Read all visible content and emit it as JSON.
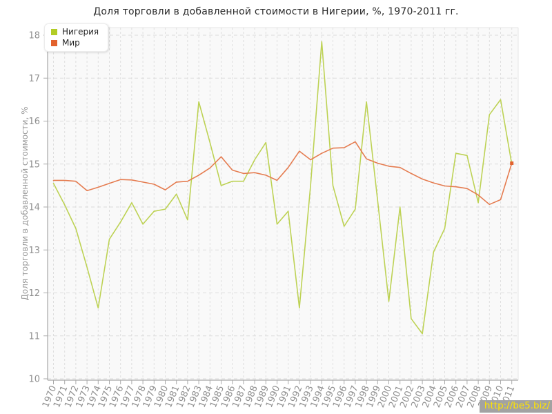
{
  "title": "Доля торговли в добавленной стоимости в Нигерии, %, 1970-2011 гг.",
  "y_axis_title": "Доля торговли в добавленной стоимости, %",
  "watermark": "http://be5.biz/",
  "legend": [
    {
      "id": "nigeria",
      "label": "Нигерия",
      "color": "#b2cc25"
    },
    {
      "id": "mir",
      "label": "Мир",
      "color": "#e2622d"
    }
  ],
  "chart_data": {
    "type": "line",
    "x": [
      1970,
      1971,
      1972,
      1973,
      1974,
      1975,
      1976,
      1977,
      1978,
      1979,
      1980,
      1981,
      1982,
      1983,
      1984,
      1985,
      1986,
      1987,
      1988,
      1989,
      1990,
      1991,
      1992,
      1993,
      1994,
      1995,
      1996,
      1997,
      1998,
      1999,
      2000,
      2001,
      2002,
      2003,
      2004,
      2005,
      2006,
      2007,
      2008,
      2009,
      2010,
      2011
    ],
    "series": [
      {
        "id": "nigeria",
        "name": "Нигерия",
        "line_color": "#bdd254",
        "values": [
          14.55,
          14.05,
          13.5,
          12.6,
          11.65,
          13.25,
          13.65,
          14.1,
          13.6,
          13.9,
          13.95,
          14.3,
          13.7,
          16.45,
          15.5,
          14.5,
          14.6,
          14.6,
          15.1,
          15.5,
          13.6,
          13.9,
          11.65,
          14.5,
          17.85,
          14.5,
          13.55,
          13.95,
          16.45,
          14.15,
          11.8,
          14.0,
          11.4,
          11.05,
          12.95,
          13.5,
          15.25,
          15.2,
          14.1,
          16.15,
          16.5,
          15.0
        ]
      },
      {
        "id": "mir",
        "name": "Мир",
        "line_color": "#e57c50",
        "values": [
          14.62,
          14.62,
          14.6,
          14.38,
          14.46,
          14.55,
          14.64,
          14.63,
          14.58,
          14.53,
          14.4,
          14.58,
          14.6,
          14.74,
          14.91,
          15.17,
          14.86,
          14.78,
          14.8,
          14.74,
          14.62,
          14.92,
          15.3,
          15.1,
          15.25,
          15.37,
          15.38,
          15.52,
          15.12,
          15.02,
          14.95,
          14.92,
          14.78,
          14.65,
          14.56,
          14.49,
          14.47,
          14.43,
          14.28,
          14.06,
          14.17,
          15.02
        ]
      }
    ],
    "ylim": [
      10,
      18
    ],
    "yticks": [
      10,
      11,
      12,
      13,
      14,
      15,
      16,
      17,
      18
    ],
    "xlabel": "",
    "ylabel": "Доля торговли в добавленной стоимости, %",
    "grid": true,
    "legend_position": "top-left"
  }
}
